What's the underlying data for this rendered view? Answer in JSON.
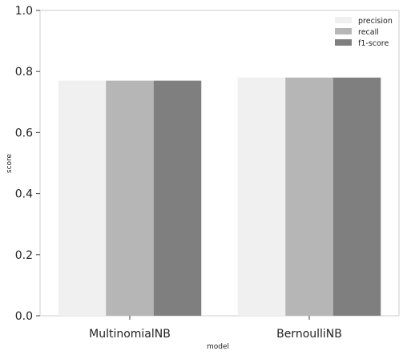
{
  "chart_data": {
    "type": "bar",
    "categories": [
      "MultinomialNB",
      "BernoulliNB"
    ],
    "series": [
      {
        "name": "precision",
        "values": [
          0.77,
          0.78
        ],
        "color": "#f0f0f0"
      },
      {
        "name": "recall",
        "values": [
          0.77,
          0.78
        ],
        "color": "#b6b6b6"
      },
      {
        "name": "f1-score",
        "values": [
          0.77,
          0.78
        ],
        "color": "#7f7f7f"
      }
    ],
    "title": "",
    "xlabel": "model",
    "ylabel": "score",
    "ylim": [
      0,
      1.0
    ],
    "yticks": [
      "0.0",
      "0.2",
      "0.4",
      "0.6",
      "0.8",
      "1.0"
    ],
    "grid": false,
    "legend_position": "top-right"
  }
}
